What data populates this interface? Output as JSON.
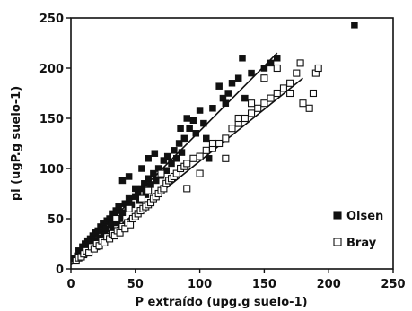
{
  "chart_data": {
    "type": "scatter",
    "xlabel": "P extraído (upg.g suelo-1)",
    "ylabel": "pi (ugP.g suelo-1)",
    "xlim": [
      0,
      250
    ],
    "ylim": [
      0,
      250
    ],
    "x_ticks": [
      "0",
      "50",
      "100",
      "150",
      "200",
      "250"
    ],
    "y_ticks": [
      "0",
      "50",
      "100",
      "150",
      "200",
      "250"
    ],
    "grid": false,
    "legend_position": "bottom-right",
    "series": [
      {
        "name": "Olsen",
        "marker": "filled-square",
        "color": "#111111",
        "points": [
          [
            3,
            10
          ],
          [
            5,
            13
          ],
          [
            6,
            18
          ],
          [
            8,
            16
          ],
          [
            9,
            22
          ],
          [
            10,
            14
          ],
          [
            11,
            25
          ],
          [
            12,
            20
          ],
          [
            13,
            28
          ],
          [
            14,
            17
          ],
          [
            15,
            30
          ],
          [
            16,
            24
          ],
          [
            17,
            33
          ],
          [
            18,
            27
          ],
          [
            19,
            36
          ],
          [
            20,
            22
          ],
          [
            21,
            38
          ],
          [
            22,
            31
          ],
          [
            23,
            42
          ],
          [
            24,
            28
          ],
          [
            25,
            45
          ],
          [
            26,
            35
          ],
          [
            27,
            40
          ],
          [
            28,
            48
          ],
          [
            29,
            33
          ],
          [
            30,
            50
          ],
          [
            31,
            44
          ],
          [
            32,
            55
          ],
          [
            33,
            38
          ],
          [
            34,
            52
          ],
          [
            35,
            58
          ],
          [
            36,
            46
          ],
          [
            37,
            62
          ],
          [
            38,
            50
          ],
          [
            40,
            56
          ],
          [
            42,
            65
          ],
          [
            44,
            60
          ],
          [
            45,
            70
          ],
          [
            47,
            64
          ],
          [
            50,
            72
          ],
          [
            52,
            76
          ],
          [
            53,
            68
          ],
          [
            55,
            80
          ],
          [
            57,
            85
          ],
          [
            58,
            74
          ],
          [
            60,
            90
          ],
          [
            62,
            84
          ],
          [
            64,
            95
          ],
          [
            66,
            88
          ],
          [
            68,
            100
          ],
          [
            70,
            93
          ],
          [
            72,
            108
          ],
          [
            74,
            98
          ],
          [
            75,
            112
          ],
          [
            78,
            105
          ],
          [
            80,
            118
          ],
          [
            82,
            110
          ],
          [
            84,
            125
          ],
          [
            86,
            116
          ],
          [
            88,
            130
          ],
          [
            90,
            150
          ],
          [
            92,
            140
          ],
          [
            95,
            148
          ],
          [
            97,
            135
          ],
          [
            100,
            158
          ],
          [
            103,
            145
          ],
          [
            107,
            110
          ],
          [
            110,
            160
          ],
          [
            115,
            182
          ],
          [
            118,
            170
          ],
          [
            120,
            165
          ],
          [
            122,
            175
          ],
          [
            125,
            185
          ],
          [
            130,
            190
          ],
          [
            133,
            210
          ],
          [
            135,
            170
          ],
          [
            140,
            195
          ],
          [
            150,
            200
          ],
          [
            155,
            205
          ],
          [
            160,
            210
          ],
          [
            40,
            88
          ],
          [
            45,
            92
          ],
          [
            50,
            80
          ],
          [
            55,
            100
          ],
          [
            60,
            110
          ],
          [
            65,
            115
          ],
          [
            85,
            140
          ],
          [
            105,
            130
          ],
          [
            220,
            243
          ]
        ]
      },
      {
        "name": "Bray",
        "marker": "open-square",
        "color": "#111111",
        "points": [
          [
            4,
            8
          ],
          [
            6,
            11
          ],
          [
            8,
            12
          ],
          [
            10,
            15
          ],
          [
            12,
            18
          ],
          [
            14,
            16
          ],
          [
            16,
            22
          ],
          [
            18,
            20
          ],
          [
            20,
            25
          ],
          [
            22,
            23
          ],
          [
            24,
            28
          ],
          [
            26,
            26
          ],
          [
            28,
            32
          ],
          [
            30,
            30
          ],
          [
            32,
            35
          ],
          [
            34,
            33
          ],
          [
            36,
            38
          ],
          [
            38,
            36
          ],
          [
            40,
            42
          ],
          [
            42,
            40
          ],
          [
            44,
            46
          ],
          [
            46,
            44
          ],
          [
            48,
            50
          ],
          [
            50,
            52
          ],
          [
            52,
            55
          ],
          [
            54,
            58
          ],
          [
            56,
            60
          ],
          [
            58,
            62
          ],
          [
            60,
            64
          ],
          [
            62,
            66
          ],
          [
            64,
            70
          ],
          [
            66,
            72
          ],
          [
            68,
            75
          ],
          [
            70,
            78
          ],
          [
            72,
            80
          ],
          [
            74,
            85
          ],
          [
            76,
            88
          ],
          [
            78,
            90
          ],
          [
            80,
            92
          ],
          [
            82,
            95
          ],
          [
            85,
            100
          ],
          [
            88,
            102
          ],
          [
            90,
            105
          ],
          [
            95,
            110
          ],
          [
            100,
            112
          ],
          [
            105,
            118
          ],
          [
            110,
            120
          ],
          [
            115,
            125
          ],
          [
            120,
            130
          ],
          [
            125,
            140
          ],
          [
            130,
            145
          ],
          [
            135,
            150
          ],
          [
            140,
            155
          ],
          [
            145,
            160
          ],
          [
            150,
            165
          ],
          [
            155,
            170
          ],
          [
            160,
            175
          ],
          [
            165,
            180
          ],
          [
            170,
            185
          ],
          [
            175,
            195
          ],
          [
            178,
            205
          ],
          [
            180,
            165
          ],
          [
            185,
            160
          ],
          [
            188,
            175
          ],
          [
            190,
            195
          ],
          [
            192,
            200
          ],
          [
            170,
            175
          ],
          [
            160,
            200
          ],
          [
            150,
            190
          ],
          [
            140,
            165
          ],
          [
            130,
            150
          ],
          [
            120,
            110
          ],
          [
            110,
            125
          ],
          [
            100,
            95
          ],
          [
            90,
            80
          ],
          [
            70,
            95
          ],
          [
            60,
            78
          ],
          [
            55,
            70
          ],
          [
            45,
            60
          ],
          [
            35,
            50
          ]
        ]
      }
    ],
    "trendlines": [
      {
        "series": "Olsen",
        "from": [
          0,
          8
        ],
        "to": [
          160,
          215
        ]
      },
      {
        "series": "Bray",
        "from": [
          0,
          4
        ],
        "to": [
          180,
          190
        ]
      }
    ]
  }
}
